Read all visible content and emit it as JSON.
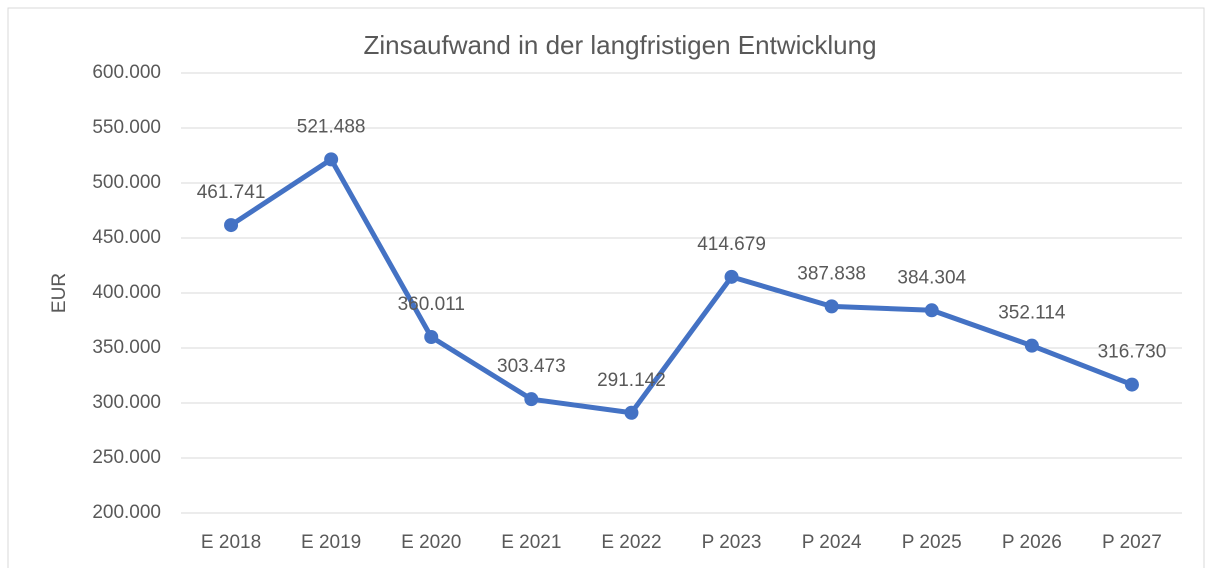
{
  "chart_data": {
    "type": "line",
    "title": "Zinsaufwand in der langfristigen Entwicklung",
    "y_label": "EUR",
    "categories": [
      "E 2018",
      "E 2019",
      "E 2020",
      "E 2021",
      "E 2022",
      "P 2023",
      "P 2024",
      "P 2025",
      "P 2026",
      "P 2027"
    ],
    "series": [
      {
        "name": "Zinsaufwand",
        "color": "#4472c4",
        "values": [
          461741,
          521488,
          360011,
          303473,
          291142,
          414679,
          387838,
          384304,
          352114,
          316730
        ],
        "value_labels": [
          "461.741",
          "521.488",
          "360.011",
          "303.473",
          "291.142",
          "414.679",
          "387.838",
          "384.304",
          "352.114",
          "316.730"
        ]
      }
    ],
    "ylim": [
      200000,
      600000
    ],
    "yticks": [
      {
        "value": 200000,
        "label": "200.000"
      },
      {
        "value": 250000,
        "label": "250.000"
      },
      {
        "value": 300000,
        "label": "300.000"
      },
      {
        "value": 350000,
        "label": "350.000"
      },
      {
        "value": 400000,
        "label": "400.000"
      },
      {
        "value": 450000,
        "label": "450.000"
      },
      {
        "value": 500000,
        "label": "500.000"
      },
      {
        "value": 550000,
        "label": "550.000"
      },
      {
        "value": 600000,
        "label": "600.000"
      }
    ],
    "grid": true
  }
}
